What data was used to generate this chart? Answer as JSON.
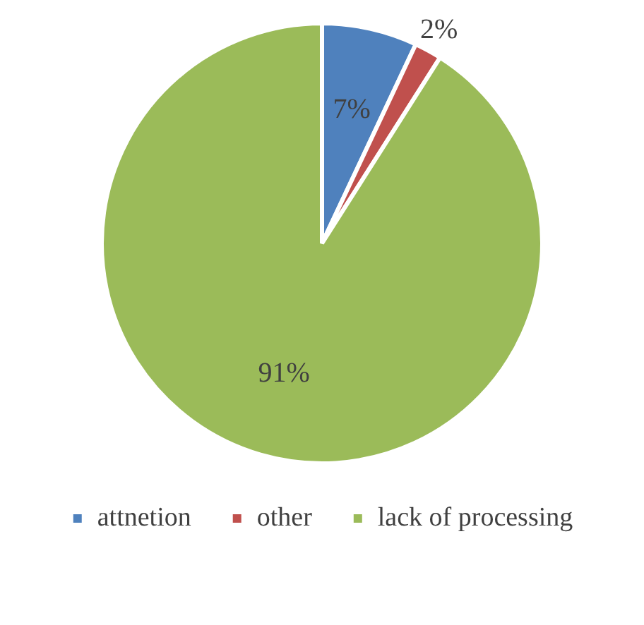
{
  "chart_data": {
    "type": "pie",
    "categories": [
      "attnetion",
      "other",
      "lack of processing"
    ],
    "values": [
      7,
      2,
      91
    ],
    "colors": [
      "#4f81bd",
      "#c0504d",
      "#9bbb59"
    ],
    "value_labels": [
      "7%",
      "2%",
      "91%"
    ],
    "legend": "bottom"
  }
}
